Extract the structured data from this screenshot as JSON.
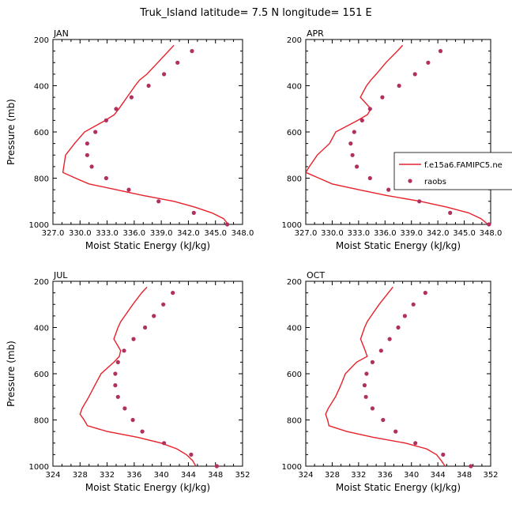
{
  "title": "Truk_Island  latitude= 7.5 N longitude= 151 E",
  "colors": {
    "model": "#e8202a",
    "raobs": "#b03060",
    "axis": "#000000"
  },
  "legend": {
    "panel": "APR",
    "model_label": "f.e15a6.FAMIPC5.ne",
    "obs_label": "raobs"
  },
  "chart_data": [
    {
      "type": "line",
      "label": "JAN",
      "xlabel": "Moist Static Energy (kJ/kg)",
      "ylabel": "Pressure (mb)",
      "xlim": [
        327,
        348
      ],
      "ylim": [
        200,
        1000
      ],
      "xticks": [
        327.0,
        330.0,
        333.0,
        336.0,
        339.0,
        342.0,
        345.0,
        348.0
      ],
      "xtick_labels": [
        "327.0",
        "330.0",
        "333.0",
        "336.0",
        "339.0",
        "342.0",
        "345.0",
        "348.0"
      ],
      "yticks": [
        200,
        400,
        600,
        800,
        1000
      ],
      "ytick_labels": [
        "200",
        "400",
        "600",
        "800",
        "1000"
      ],
      "series": [
        {
          "name": "f.e15a6.FAMIPC5.ne",
          "kind": "line",
          "pressure": [
            225,
            250,
            300,
            350,
            375,
            400,
            450,
            500,
            525,
            550,
            600,
            650,
            700,
            750,
            775,
            800,
            825,
            850,
            875,
            900,
            925,
            950,
            975,
            1000
          ],
          "values": [
            340.4,
            339.8,
            338.6,
            337.4,
            336.6,
            336.1,
            335.2,
            334.3,
            333.8,
            332.8,
            330.5,
            329.4,
            328.4,
            328.2,
            328.1,
            329.5,
            331.0,
            334.0,
            337.0,
            340.4,
            342.7,
            344.6,
            345.9,
            346.4
          ]
        },
        {
          "name": "raobs",
          "kind": "scatter",
          "pressure": [
            250,
            300,
            350,
            400,
            450,
            500,
            550,
            600,
            650,
            700,
            750,
            800,
            850,
            900,
            950,
            1000
          ],
          "values": [
            342.4,
            340.8,
            339.3,
            337.6,
            335.7,
            334.0,
            332.9,
            331.7,
            330.8,
            330.8,
            331.3,
            332.9,
            335.4,
            338.7,
            342.6,
            346.3
          ]
        }
      ]
    },
    {
      "type": "line",
      "label": "APR",
      "xlabel": "Moist Static Energy (kJ/kg)",
      "ylabel": "",
      "xlim": [
        327,
        348
      ],
      "ylim": [
        200,
        1000
      ],
      "xticks": [
        327.0,
        330.0,
        333.0,
        336.0,
        339.0,
        342.0,
        345.0,
        348.0
      ],
      "xtick_labels": [
        "327.0",
        "330.0",
        "333.0",
        "336.0",
        "339.0",
        "342.0",
        "345.0",
        "348.0"
      ],
      "yticks": [
        200,
        400,
        600,
        800,
        1000
      ],
      "ytick_labels": [
        "200",
        "400",
        "600",
        "800",
        "1000"
      ],
      "series": [
        {
          "name": "f.e15a6.FAMIPC5.ne",
          "kind": "line",
          "pressure": [
            225,
            250,
            300,
            350,
            375,
            400,
            450,
            500,
            525,
            550,
            600,
            650,
            700,
            750,
            775,
            800,
            825,
            850,
            875,
            900,
            925,
            950,
            975,
            1000
          ],
          "values": [
            338.0,
            337.4,
            336.1,
            335.0,
            334.4,
            333.9,
            333.2,
            334.4,
            334.0,
            332.9,
            330.4,
            329.7,
            328.3,
            327.4,
            327.0,
            328.5,
            330.0,
            333.0,
            336.2,
            340.0,
            343.0,
            345.5,
            346.9,
            347.7
          ]
        },
        {
          "name": "raobs",
          "kind": "scatter",
          "pressure": [
            250,
            300,
            350,
            400,
            450,
            500,
            550,
            600,
            650,
            700,
            750,
            800,
            850,
            900,
            950,
            1000
          ],
          "values": [
            342.3,
            340.9,
            339.4,
            337.6,
            335.7,
            334.3,
            333.4,
            332.5,
            332.1,
            332.3,
            332.8,
            334.3,
            336.4,
            339.9,
            343.4,
            347.8
          ]
        }
      ]
    },
    {
      "type": "line",
      "label": "JUL",
      "xlabel": "Moist Static Energy (kJ/kg)",
      "ylabel": "Pressure (mb)",
      "xlim": [
        324,
        352
      ],
      "ylim": [
        200,
        1000
      ],
      "xticks": [
        324,
        328,
        332,
        336,
        340,
        344,
        348,
        352
      ],
      "xtick_labels": [
        "324",
        "328",
        "332",
        "336",
        "340",
        "344",
        "348",
        "352"
      ],
      "yticks": [
        200,
        400,
        600,
        800,
        1000
      ],
      "ytick_labels": [
        "200",
        "400",
        "600",
        "800",
        "1000"
      ],
      "series": [
        {
          "name": "f.e15a6.FAMIPC5.ne",
          "kind": "line",
          "pressure": [
            225,
            250,
            300,
            350,
            375,
            400,
            450,
            500,
            525,
            550,
            600,
            650,
            700,
            750,
            775,
            800,
            825,
            850,
            875,
            900,
            925,
            950,
            975,
            1000
          ],
          "values": [
            337.9,
            337.1,
            335.8,
            334.6,
            334.0,
            333.6,
            333.0,
            334.0,
            333.8,
            333.0,
            331.1,
            330.2,
            329.3,
            328.3,
            328.0,
            328.6,
            329.1,
            332.0,
            336.5,
            340.0,
            342.3,
            343.7,
            344.6,
            345.1
          ]
        },
        {
          "name": "raobs",
          "kind": "scatter",
          "pressure": [
            250,
            300,
            350,
            400,
            450,
            500,
            550,
            600,
            650,
            700,
            750,
            800,
            850,
            900,
            950,
            1000
          ],
          "values": [
            341.7,
            340.3,
            338.9,
            337.6,
            335.9,
            334.5,
            333.6,
            333.2,
            333.2,
            333.6,
            334.6,
            335.8,
            337.2,
            340.4,
            344.4,
            348.2
          ]
        }
      ]
    },
    {
      "type": "line",
      "label": "OCT",
      "xlabel": "Moist Static Energy (kJ/kg)",
      "ylabel": "",
      "xlim": [
        324,
        352
      ],
      "ylim": [
        200,
        1000
      ],
      "xticks": [
        324,
        328,
        332,
        336,
        340,
        344,
        348,
        352
      ],
      "xtick_labels": [
        "324",
        "328",
        "332",
        "336",
        "340",
        "344",
        "348",
        "352"
      ],
      "yticks": [
        200,
        400,
        600,
        800,
        1000
      ],
      "ytick_labels": [
        "200",
        "400",
        "600",
        "800",
        "1000"
      ],
      "series": [
        {
          "name": "f.e15a6.FAMIPC5.ne",
          "kind": "line",
          "pressure": [
            225,
            250,
            300,
            350,
            375,
            400,
            450,
            500,
            525,
            550,
            600,
            650,
            700,
            750,
            775,
            800,
            825,
            850,
            875,
            900,
            925,
            950,
            975,
            1000
          ],
          "values": [
            337.2,
            336.5,
            335.1,
            333.9,
            333.3,
            332.9,
            332.3,
            333.0,
            333.3,
            331.7,
            330.0,
            329.3,
            328.5,
            327.4,
            327.0,
            327.3,
            327.5,
            330.2,
            334.2,
            339.1,
            342.3,
            343.8,
            344.5,
            345.1
          ]
        },
        {
          "name": "raobs",
          "kind": "scatter",
          "pressure": [
            250,
            300,
            350,
            400,
            450,
            500,
            550,
            600,
            650,
            700,
            750,
            800,
            850,
            900,
            950,
            1000
          ],
          "values": [
            342.1,
            340.3,
            339.0,
            338.0,
            336.7,
            335.4,
            334.1,
            333.2,
            332.9,
            333.1,
            334.1,
            335.7,
            337.6,
            340.6,
            344.8,
            349.0
          ]
        }
      ]
    }
  ]
}
